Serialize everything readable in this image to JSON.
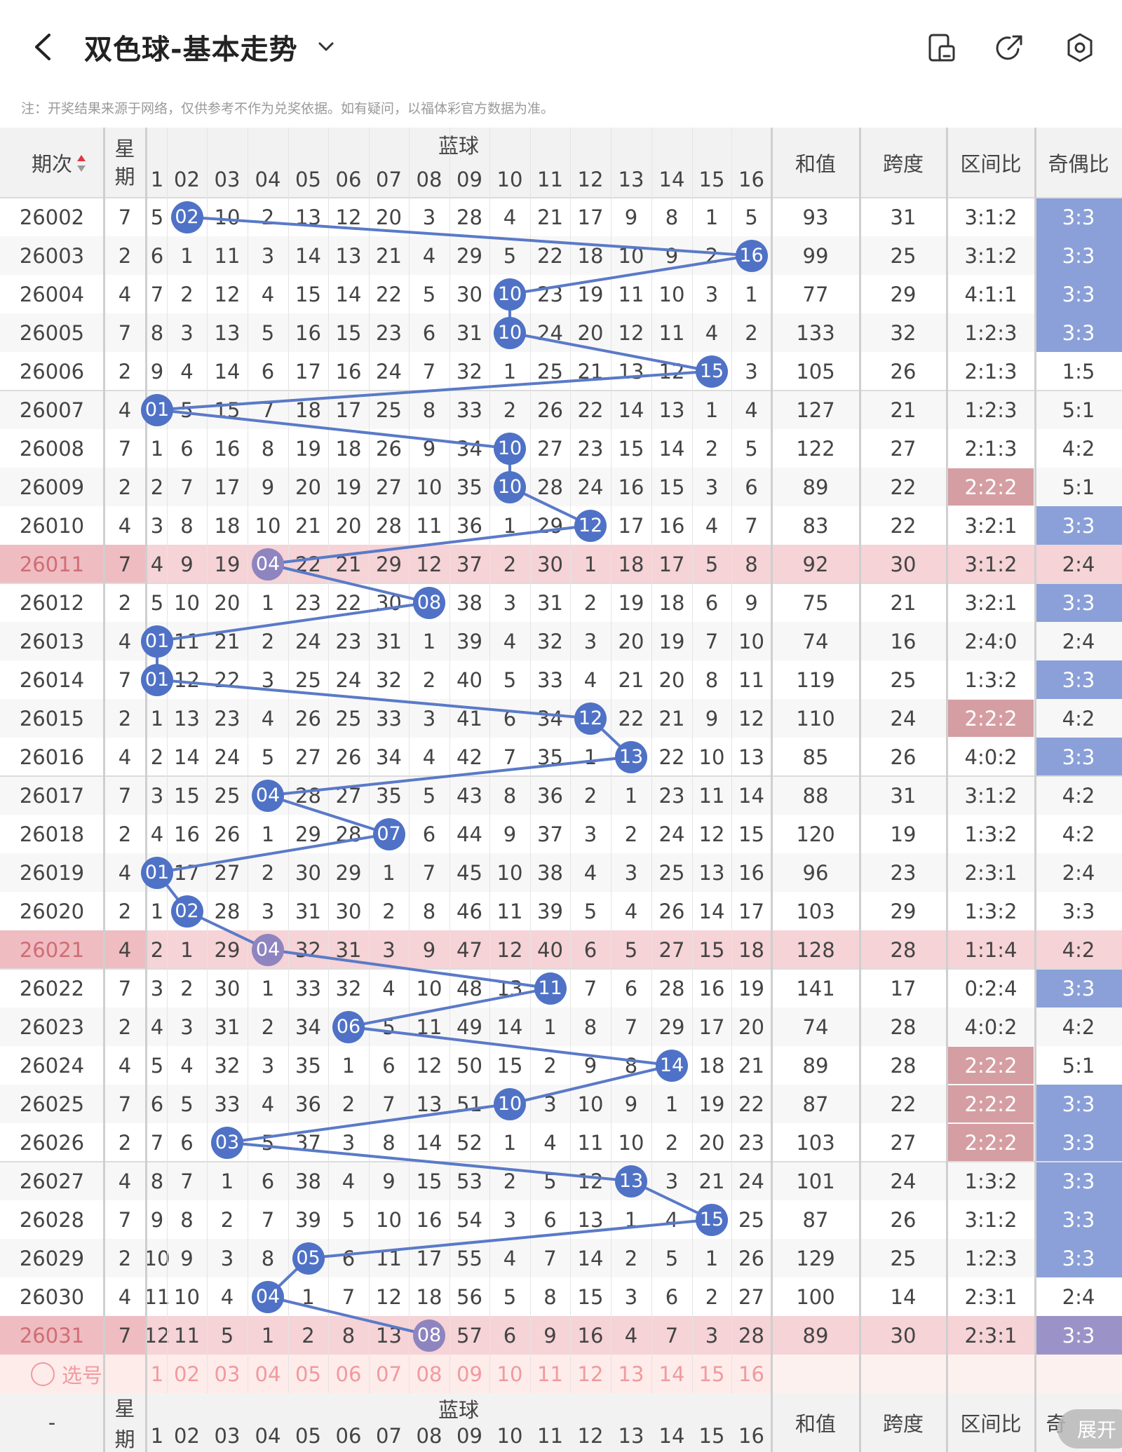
{
  "header": {
    "title": "双色球-基本走势",
    "back_icon": "back-arrow-icon",
    "chevron_icon": "chevron-down-icon",
    "right_icons": [
      "tablet-layout-icon",
      "share-icon",
      "settings-icon"
    ]
  },
  "notice": "注：开奖结果来源于网络，仅供参考不作为兑奖依据。如有疑问，以福体彩官方数据为准。",
  "table": {
    "headers": {
      "period": "期次",
      "week": "星期",
      "blue": "蓝球",
      "sum": "和值",
      "span": "跨度",
      "zone_ratio": "区间比",
      "odd_even_ratio": "奇偶比"
    },
    "blue_columns": [
      "1",
      "02",
      "03",
      "04",
      "05",
      "06",
      "07",
      "08",
      "09",
      "10",
      "11",
      "12",
      "13",
      "14",
      "15",
      "16"
    ],
    "rows": [
      {
        "period": "26002",
        "week": "7",
        "cells": [
          "5",
          "02",
          "10",
          "2",
          "13",
          "12",
          "20",
          "3",
          "28",
          "4",
          "21",
          "17",
          "9",
          "8",
          "1",
          "5"
        ],
        "sum": "93",
        "span": "31",
        "zone": "3:1:2",
        "oe": "3:3"
      },
      {
        "period": "26003",
        "week": "2",
        "cells": [
          "6",
          "1",
          "11",
          "3",
          "14",
          "13",
          "21",
          "4",
          "29",
          "5",
          "22",
          "18",
          "10",
          "9",
          "2",
          "16"
        ],
        "sum": "99",
        "span": "25",
        "zone": "3:1:2",
        "oe": "3:3"
      },
      {
        "period": "26004",
        "week": "4",
        "cells": [
          "7",
          "2",
          "12",
          "4",
          "15",
          "14",
          "22",
          "5",
          "30",
          "10",
          "23",
          "19",
          "11",
          "10",
          "3",
          "1"
        ],
        "sum": "77",
        "span": "29",
        "zone": "4:1:1",
        "oe": "3:3"
      },
      {
        "period": "26005",
        "week": "7",
        "cells": [
          "8",
          "3",
          "13",
          "5",
          "16",
          "15",
          "23",
          "6",
          "31",
          "10",
          "24",
          "20",
          "12",
          "11",
          "4",
          "2"
        ],
        "sum": "133",
        "span": "32",
        "zone": "1:2:3",
        "oe": "3:3"
      },
      {
        "period": "26006",
        "week": "2",
        "cells": [
          "9",
          "4",
          "14",
          "6",
          "17",
          "16",
          "24",
          "7",
          "32",
          "1",
          "25",
          "21",
          "13",
          "12",
          "15",
          "3"
        ],
        "sum": "105",
        "span": "26",
        "zone": "2:1:3",
        "oe": "1:5"
      },
      {
        "period": "26007",
        "week": "4",
        "cells": [
          "01",
          "5",
          "15",
          "7",
          "18",
          "17",
          "25",
          "8",
          "33",
          "2",
          "26",
          "22",
          "14",
          "13",
          "1",
          "4"
        ],
        "sum": "127",
        "span": "21",
        "zone": "1:2:3",
        "oe": "5:1"
      },
      {
        "period": "26008",
        "week": "7",
        "cells": [
          "1",
          "6",
          "16",
          "8",
          "19",
          "18",
          "26",
          "9",
          "34",
          "10",
          "27",
          "23",
          "15",
          "14",
          "2",
          "5"
        ],
        "sum": "122",
        "span": "27",
        "zone": "2:1:3",
        "oe": "4:2"
      },
      {
        "period": "26009",
        "week": "2",
        "cells": [
          "2",
          "7",
          "17",
          "9",
          "20",
          "19",
          "27",
          "10",
          "35",
          "10",
          "28",
          "24",
          "16",
          "15",
          "3",
          "6"
        ],
        "sum": "89",
        "span": "22",
        "zone": "2:2:2",
        "oe": "5:1"
      },
      {
        "period": "26010",
        "week": "4",
        "cells": [
          "3",
          "8",
          "18",
          "10",
          "21",
          "20",
          "28",
          "11",
          "36",
          "1",
          "29",
          "12",
          "17",
          "16",
          "4",
          "7"
        ],
        "sum": "83",
        "span": "22",
        "zone": "3:2:1",
        "oe": "3:3"
      },
      {
        "period": "26011",
        "week": "7",
        "cells": [
          "4",
          "9",
          "19",
          "04",
          "22",
          "21",
          "29",
          "12",
          "37",
          "2",
          "30",
          "1",
          "18",
          "17",
          "5",
          "8"
        ],
        "sum": "92",
        "span": "30",
        "zone": "3:1:2",
        "oe": "2:4"
      },
      {
        "period": "26012",
        "week": "2",
        "cells": [
          "5",
          "10",
          "20",
          "1",
          "23",
          "22",
          "30",
          "08",
          "38",
          "3",
          "31",
          "2",
          "19",
          "18",
          "6",
          "9"
        ],
        "sum": "75",
        "span": "21",
        "zone": "3:2:1",
        "oe": "3:3"
      },
      {
        "period": "26013",
        "week": "4",
        "cells": [
          "01",
          "11",
          "21",
          "2",
          "24",
          "23",
          "31",
          "1",
          "39",
          "4",
          "32",
          "3",
          "20",
          "19",
          "7",
          "10"
        ],
        "sum": "74",
        "span": "16",
        "zone": "2:4:0",
        "oe": "2:4"
      },
      {
        "period": "26014",
        "week": "7",
        "cells": [
          "01",
          "12",
          "22",
          "3",
          "25",
          "24",
          "32",
          "2",
          "40",
          "5",
          "33",
          "4",
          "21",
          "20",
          "8",
          "11"
        ],
        "sum": "119",
        "span": "25",
        "zone": "1:3:2",
        "oe": "3:3"
      },
      {
        "period": "26015",
        "week": "2",
        "cells": [
          "1",
          "13",
          "23",
          "4",
          "26",
          "25",
          "33",
          "3",
          "41",
          "6",
          "34",
          "12",
          "22",
          "21",
          "9",
          "12"
        ],
        "sum": "110",
        "span": "24",
        "zone": "2:2:2",
        "oe": "4:2"
      },
      {
        "period": "26016",
        "week": "4",
        "cells": [
          "2",
          "14",
          "24",
          "5",
          "27",
          "26",
          "34",
          "4",
          "42",
          "7",
          "35",
          "1",
          "13",
          "22",
          "10",
          "13"
        ],
        "sum": "85",
        "span": "26",
        "zone": "4:0:2",
        "oe": "3:3"
      },
      {
        "period": "26017",
        "week": "7",
        "cells": [
          "3",
          "15",
          "25",
          "04",
          "28",
          "27",
          "35",
          "5",
          "43",
          "8",
          "36",
          "2",
          "1",
          "23",
          "11",
          "14"
        ],
        "sum": "88",
        "span": "31",
        "zone": "3:1:2",
        "oe": "4:2"
      },
      {
        "period": "26018",
        "week": "2",
        "cells": [
          "4",
          "16",
          "26",
          "1",
          "29",
          "28",
          "07",
          "6",
          "44",
          "9",
          "37",
          "3",
          "2",
          "24",
          "12",
          "15"
        ],
        "sum": "120",
        "span": "19",
        "zone": "1:3:2",
        "oe": "4:2"
      },
      {
        "period": "26019",
        "week": "4",
        "cells": [
          "01",
          "17",
          "27",
          "2",
          "30",
          "29",
          "1",
          "7",
          "45",
          "10",
          "38",
          "4",
          "3",
          "25",
          "13",
          "16"
        ],
        "sum": "96",
        "span": "23",
        "zone": "2:3:1",
        "oe": "2:4"
      },
      {
        "period": "26020",
        "week": "2",
        "cells": [
          "1",
          "02",
          "28",
          "3",
          "31",
          "30",
          "2",
          "8",
          "46",
          "11",
          "39",
          "5",
          "4",
          "26",
          "14",
          "17"
        ],
        "sum": "103",
        "span": "29",
        "zone": "1:3:2",
        "oe": "3:3"
      },
      {
        "period": "26021",
        "week": "4",
        "cells": [
          "2",
          "1",
          "29",
          "04",
          "32",
          "31",
          "3",
          "9",
          "47",
          "12",
          "40",
          "6",
          "5",
          "27",
          "15",
          "18"
        ],
        "sum": "128",
        "span": "28",
        "zone": "1:1:4",
        "oe": "4:2"
      },
      {
        "period": "26022",
        "week": "7",
        "cells": [
          "3",
          "2",
          "30",
          "1",
          "33",
          "32",
          "4",
          "10",
          "48",
          "13",
          "11",
          "7",
          "6",
          "28",
          "16",
          "19"
        ],
        "sum": "141",
        "span": "17",
        "zone": "0:2:4",
        "oe": "3:3"
      },
      {
        "period": "26023",
        "week": "2",
        "cells": [
          "4",
          "3",
          "31",
          "2",
          "34",
          "06",
          "5",
          "11",
          "49",
          "14",
          "1",
          "8",
          "7",
          "29",
          "17",
          "20"
        ],
        "sum": "74",
        "span": "28",
        "zone": "4:0:2",
        "oe": "4:2"
      },
      {
        "period": "26024",
        "week": "4",
        "cells": [
          "5",
          "4",
          "32",
          "3",
          "35",
          "1",
          "6",
          "12",
          "50",
          "15",
          "2",
          "9",
          "8",
          "14",
          "18",
          "21"
        ],
        "sum": "89",
        "span": "28",
        "zone": "2:2:2",
        "oe": "5:1"
      },
      {
        "period": "26025",
        "week": "7",
        "cells": [
          "6",
          "5",
          "33",
          "4",
          "36",
          "2",
          "7",
          "13",
          "51",
          "10",
          "3",
          "10",
          "9",
          "1",
          "19",
          "22"
        ],
        "sum": "87",
        "span": "22",
        "zone": "2:2:2",
        "oe": "3:3"
      },
      {
        "period": "26026",
        "week": "2",
        "cells": [
          "7",
          "6",
          "03",
          "5",
          "37",
          "3",
          "8",
          "14",
          "52",
          "1",
          "4",
          "11",
          "10",
          "2",
          "20",
          "23"
        ],
        "sum": "103",
        "span": "27",
        "zone": "2:2:2",
        "oe": "3:3"
      },
      {
        "period": "26027",
        "week": "4",
        "cells": [
          "8",
          "7",
          "1",
          "6",
          "38",
          "4",
          "9",
          "15",
          "53",
          "2",
          "5",
          "12",
          "13",
          "3",
          "21",
          "24"
        ],
        "sum": "101",
        "span": "24",
        "zone": "1:3:2",
        "oe": "3:3"
      },
      {
        "period": "26028",
        "week": "7",
        "cells": [
          "9",
          "8",
          "2",
          "7",
          "39",
          "5",
          "10",
          "16",
          "54",
          "3",
          "6",
          "13",
          "1",
          "4",
          "15",
          "25"
        ],
        "sum": "87",
        "span": "26",
        "zone": "3:1:2",
        "oe": "3:3"
      },
      {
        "period": "26029",
        "week": "2",
        "cells": [
          "10",
          "9",
          "3",
          "8",
          "05",
          "6",
          "11",
          "17",
          "55",
          "4",
          "7",
          "14",
          "2",
          "5",
          "1",
          "26"
        ],
        "sum": "129",
        "span": "25",
        "zone": "1:2:3",
        "oe": "3:3"
      },
      {
        "period": "26030",
        "week": "4",
        "cells": [
          "11",
          "10",
          "4",
          "04",
          "1",
          "7",
          "12",
          "18",
          "56",
          "5",
          "8",
          "15",
          "3",
          "6",
          "2",
          "27"
        ],
        "sum": "100",
        "span": "14",
        "zone": "2:3:1",
        "oe": "2:4"
      },
      {
        "period": "26031",
        "week": "7",
        "cells": [
          "12",
          "11",
          "5",
          "1",
          "2",
          "8",
          "13",
          "08",
          "57",
          "6",
          "9",
          "16",
          "4",
          "7",
          "3",
          "28"
        ],
        "sum": "89",
        "span": "30",
        "zone": "2:3:1",
        "oe": "3:3"
      }
    ],
    "drawn_blue_index": [
      1,
      15,
      9,
      9,
      14,
      0,
      9,
      9,
      11,
      3,
      7,
      0,
      0,
      11,
      12,
      3,
      6,
      0,
      1,
      3,
      10,
      5,
      13,
      9,
      2,
      12,
      14,
      4,
      3,
      7
    ],
    "highlight_rows": [
      9,
      19,
      29
    ],
    "zone_highlight_rows": [
      7,
      13,
      22,
      23,
      24
    ],
    "oe_highlight_rows": [
      0,
      1,
      2,
      3,
      8,
      10,
      12,
      14,
      20,
      23,
      24,
      25,
      26,
      27,
      29
    ],
    "pick_row": {
      "label": "选号",
      "numbers": [
        "1",
        "02",
        "03",
        "04",
        "05",
        "06",
        "07",
        "08",
        "09",
        "10",
        "11",
        "12",
        "13",
        "14",
        "15",
        "16"
      ]
    },
    "footer": {
      "period": "-",
      "week": "星期",
      "blue": "蓝球",
      "numbers": [
        "1",
        "02",
        "03",
        "04",
        "05",
        "06",
        "07",
        "08",
        "09",
        "10",
        "11",
        "12",
        "13",
        "14",
        "15",
        "16"
      ],
      "sum": "和值",
      "span": "跨度",
      "zone_ratio": "区间比",
      "oe_partial": "奇"
    },
    "expand_label": "展开"
  },
  "colors": {
    "ball_blue": "#4f72c6",
    "ball_purple": "#8e84bf",
    "line": "#5a7ac8",
    "row_highlight": "#f5d3d6",
    "oe_blue": "#8ba0d8",
    "zone_red": "#d59ea3",
    "pick_text": "#f09aa0"
  }
}
